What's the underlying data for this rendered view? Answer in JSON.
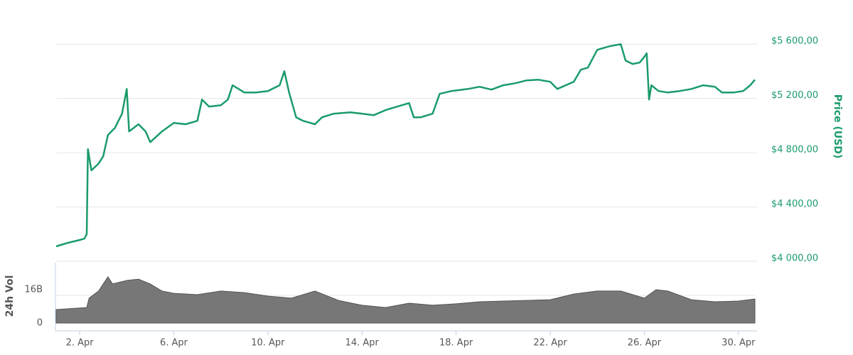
{
  "chart_data": [
    {
      "type": "line",
      "y_label": "Price (USD)",
      "axis_side": "right",
      "color": "#1a9b6a",
      "grid": true,
      "xlim": [
        1,
        30.7
      ],
      "ylim": [
        4000,
        5800
      ],
      "yticks": [
        {
          "value": 4000,
          "label": "$4 000,00"
        },
        {
          "value": 4400,
          "label": "$4 400,00"
        },
        {
          "value": 4800,
          "label": "$4 800,00"
        },
        {
          "value": 5200,
          "label": "$5 200,00"
        },
        {
          "value": 5600,
          "label": "$5 600,00"
        }
      ],
      "x": [
        1.0,
        1.5,
        2.0,
        2.2,
        2.3,
        2.35,
        2.5,
        2.8,
        3.0,
        3.2,
        3.5,
        3.8,
        4.0,
        4.1,
        4.5,
        4.8,
        5.0,
        5.5,
        6.0,
        6.5,
        7.0,
        7.2,
        7.5,
        8.0,
        8.3,
        8.5,
        9.0,
        9.5,
        10.0,
        10.5,
        10.7,
        10.9,
        11.2,
        11.5,
        12.0,
        12.3,
        12.8,
        13.5,
        14.0,
        14.5,
        15.0,
        15.5,
        16.0,
        16.2,
        16.5,
        17.0,
        17.3,
        17.8,
        18.5,
        19.0,
        19.5,
        20.0,
        20.5,
        21.0,
        21.5,
        22.0,
        22.3,
        23.0,
        23.3,
        23.6,
        24.0,
        24.5,
        25.0,
        25.2,
        25.5,
        25.8,
        26.0,
        26.1,
        26.2,
        26.3,
        26.6,
        27.0,
        27.5,
        28.0,
        28.5,
        29.0,
        29.3,
        29.8,
        30.2,
        30.5,
        30.7
      ],
      "values": [
        4110,
        4136,
        4157,
        4167,
        4200,
        4826,
        4670,
        4720,
        4774,
        4930,
        4983,
        5088,
        5270,
        4957,
        5010,
        4957,
        4878,
        4957,
        5020,
        5010,
        5035,
        5192,
        5140,
        5150,
        5192,
        5297,
        5244,
        5244,
        5255,
        5297,
        5401,
        5244,
        5061,
        5035,
        5010,
        5061,
        5088,
        5098,
        5088,
        5077,
        5114,
        5140,
        5166,
        5061,
        5061,
        5088,
        5234,
        5255,
        5270,
        5286,
        5265,
        5297,
        5312,
        5333,
        5338,
        5323,
        5270,
        5323,
        5412,
        5427,
        5558,
        5584,
        5600,
        5480,
        5454,
        5464,
        5506,
        5532,
        5192,
        5297,
        5255,
        5244,
        5255,
        5270,
        5297,
        5286,
        5244,
        5244,
        5255,
        5297,
        5338
      ]
    },
    {
      "type": "area",
      "y_label": "24h Vol",
      "axis_side": "left",
      "color": "#777777",
      "grid": true,
      "xlim": [
        1,
        30.7
      ],
      "ylim": [
        0,
        32000000000
      ],
      "yticks": [
        0,
        {
          "value": 16000000000,
          "label": "16B"
        }
      ],
      "xticks": [
        {
          "value": 2,
          "label": "2. Apr"
        },
        {
          "value": 6,
          "label": "6. Apr"
        },
        {
          "value": 10,
          "label": "10. Apr"
        },
        {
          "value": 14,
          "label": "14. Apr"
        },
        {
          "value": 18,
          "label": "18. Apr"
        },
        {
          "value": 22,
          "label": "22. Apr"
        },
        {
          "value": 26,
          "label": "26. Apr"
        },
        {
          "value": 30,
          "label": "30. Apr"
        }
      ],
      "x": [
        1.0,
        2.3,
        2.4,
        2.8,
        3.2,
        3.4,
        4.0,
        4.5,
        5.0,
        5.5,
        6.0,
        7.0,
        8.0,
        9.0,
        10.0,
        11.0,
        12.0,
        13.0,
        14.0,
        15.0,
        16.0,
        17.0,
        18.0,
        19.0,
        20.0,
        21.0,
        22.0,
        23.0,
        24.0,
        25.0,
        26.0,
        26.5,
        27.0,
        28.0,
        29.0,
        30.0,
        30.7
      ],
      "values": [
        7800000000,
        9000000000,
        14400000000,
        18500000000,
        26700000000,
        22600000000,
        24600000000,
        25400000000,
        22600000000,
        18500000000,
        17200000000,
        16400000000,
        18500000000,
        17600000000,
        15600000000,
        14400000000,
        18500000000,
        13100000000,
        10300000000,
        9000000000,
        11500000000,
        10300000000,
        11100000000,
        12300000000,
        12700000000,
        13100000000,
        13500000000,
        16800000000,
        18500000000,
        18500000000,
        14400000000,
        19300000000,
        18500000000,
        13500000000,
        12300000000,
        12700000000,
        13900000000
      ]
    }
  ]
}
